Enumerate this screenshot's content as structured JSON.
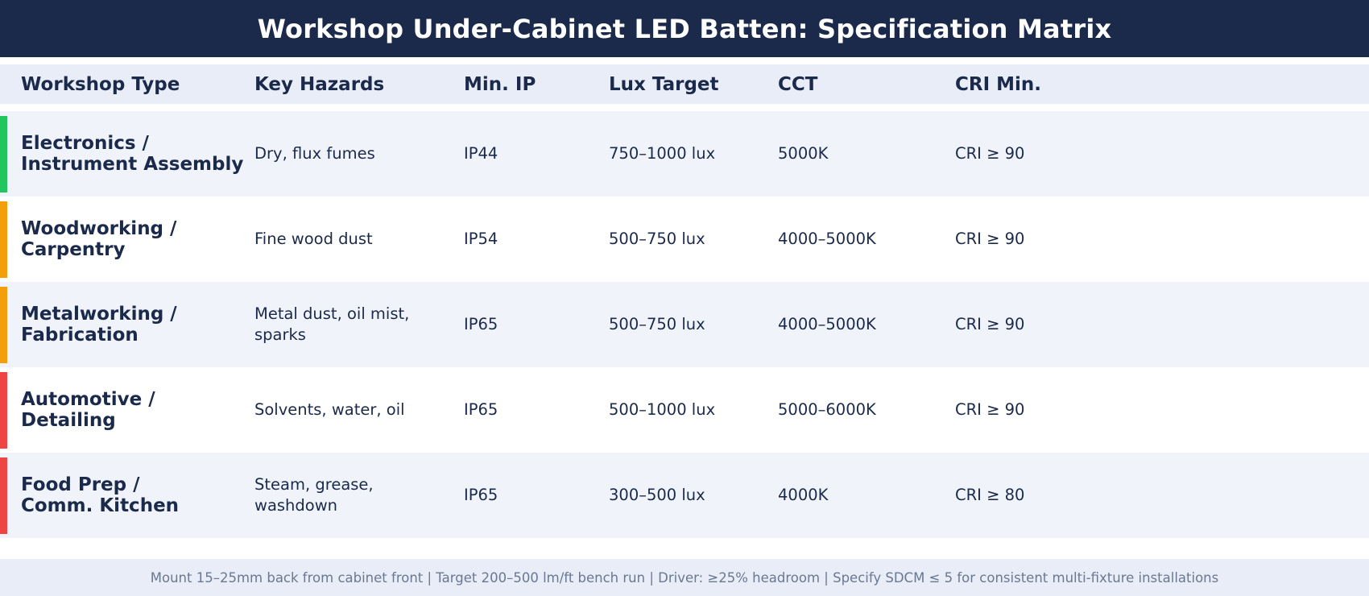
{
  "title": "Workshop Under-Cabinet LED Batten: Specification Matrix",
  "colors": {
    "header_bg": "#1b2a4a",
    "green": "#22c55e",
    "orange": "#f59e0b",
    "red": "#ef4444"
  },
  "columns": [
    "Workshop Type",
    "Key Hazards",
    "Min. IP",
    "Lux Target",
    "CCT",
    "CRI Min."
  ],
  "rows": [
    {
      "type_line1": "Electronics /",
      "type_line2": "Instrument Assembly",
      "hazards": "Dry, flux fumes",
      "ip": "IP44",
      "lux": "750–1000 lux",
      "cct": "5000K",
      "cri": "CRI ≥ 90",
      "accent": "#22c55e"
    },
    {
      "type_line1": "Woodworking /",
      "type_line2": "Carpentry",
      "hazards": "Fine wood dust",
      "ip": "IP54",
      "lux": "500–750 lux",
      "cct": "4000–5000K",
      "cri": "CRI ≥ 90",
      "accent": "#f59e0b"
    },
    {
      "type_line1": "Metalworking /",
      "type_line2": "Fabrication",
      "hazards": "Metal dust, oil mist, sparks",
      "ip": "IP65",
      "lux": "500–750 lux",
      "cct": "4000–5000K",
      "cri": "CRI ≥ 90",
      "accent": "#f59e0b"
    },
    {
      "type_line1": "Automotive /",
      "type_line2": "Detailing",
      "hazards": "Solvents, water, oil",
      "ip": "IP65",
      "lux": "500–1000 lux",
      "cct": "5000–6000K",
      "cri": "CRI ≥ 90",
      "accent": "#ef4444"
    },
    {
      "type_line1": "Food Prep /",
      "type_line2": "Comm. Kitchen",
      "hazards": "Steam, grease, washdown",
      "ip": "IP65",
      "lux": "300–500 lux",
      "cct": "4000K",
      "cri": "CRI ≥ 80",
      "accent": "#ef4444"
    }
  ],
  "footer": "Mount 15–25mm back from cabinet front  |  Target 200–500 lm/ft bench run  |  Driver: ≥25% headroom  |  Specify SDCM ≤ 5 for consistent multi-fixture installations"
}
